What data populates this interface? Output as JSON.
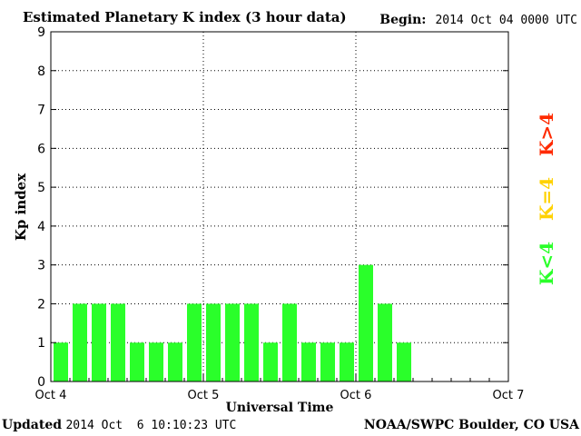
{
  "header": {
    "title": "Estimated Planetary K index (3 hour data)",
    "begin_label": "Begin:",
    "begin_value": "2014 Oct 04 0000 UTC"
  },
  "footer": {
    "updated_label": "Updated",
    "updated_value": "2014 Oct  6 10:10:23 UTC",
    "source": "NOAA/SWPC Boulder, CO USA"
  },
  "legend": {
    "high": {
      "label": "K>4",
      "color": "#ff2a00"
    },
    "mid": {
      "label": "K=4",
      "color": "#ffd200"
    },
    "low": {
      "label": "K<4",
      "color": "#2aff2a"
    }
  },
  "chart_data": {
    "type": "bar",
    "title": "Estimated Planetary K index (3 hour data)",
    "xlabel": "Universal Time",
    "ylabel": "Kp index",
    "ylim": [
      0,
      9
    ],
    "yticks": [
      "0",
      "1",
      "2",
      "3",
      "4",
      "5",
      "6",
      "7",
      "8",
      "9"
    ],
    "xticks": [
      "Oct 4",
      "Oct 5",
      "Oct 6",
      "Oct 7"
    ],
    "grid": true,
    "bar_color": "#2aff2a",
    "periods_per_day": 8,
    "days": 3,
    "values": [
      1,
      2,
      2,
      2,
      1,
      1,
      1,
      2,
      2,
      2,
      2,
      1,
      2,
      1,
      1,
      1,
      3,
      2,
      1
    ]
  }
}
